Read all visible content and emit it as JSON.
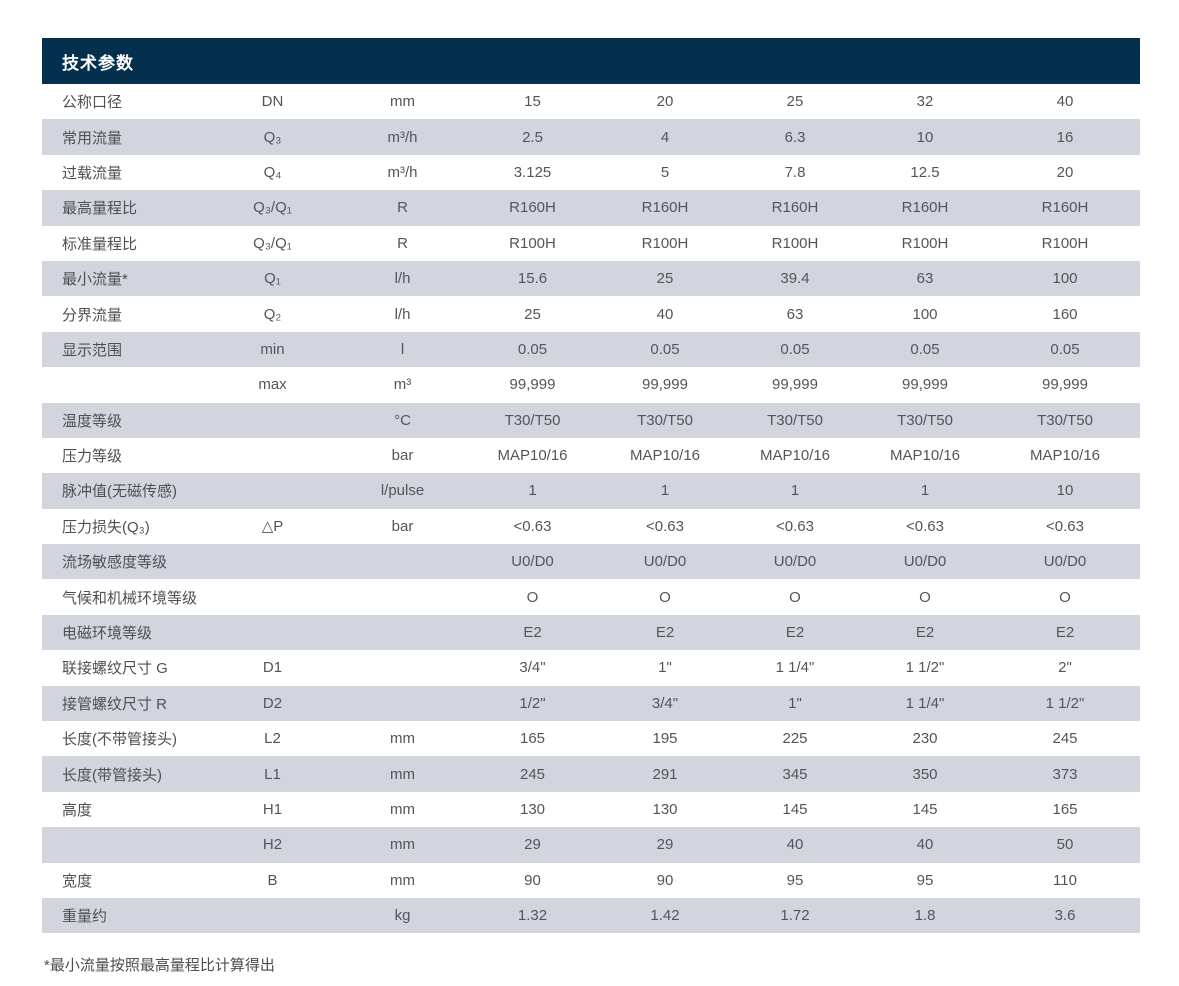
{
  "header": {
    "title": "技术参数"
  },
  "footnote": "*最小流量按照最高量程比计算得出",
  "colors": {
    "header_bg": "#04304d",
    "header_text": "#ffffff",
    "row_alt_bg": "#d3d5de",
    "row_bg": "#ffffff",
    "body_text": "#53555b"
  },
  "table": {
    "column_roles": [
      "label",
      "symbol",
      "unit",
      "DN15",
      "DN20",
      "DN25",
      "DN32",
      "DN40"
    ],
    "rows": [
      {
        "label": "公称口径",
        "symbol": "DN",
        "unit": "mm",
        "values": [
          "15",
          "20",
          "25",
          "32",
          "40"
        ]
      },
      {
        "label": "常用流量",
        "symbol": "Q₃",
        "unit": "m³/h",
        "values": [
          "2.5",
          "4",
          "6.3",
          "10",
          "16"
        ]
      },
      {
        "label": "过载流量",
        "symbol": "Q₄",
        "unit": "m³/h",
        "values": [
          "3.125",
          "5",
          "7.8",
          "12.5",
          "20"
        ]
      },
      {
        "label": "最高量程比",
        "symbol": "Q₃/Q₁",
        "unit": "R",
        "values": [
          "R160H",
          "R160H",
          "R160H",
          "R160H",
          "R160H"
        ]
      },
      {
        "label": "标准量程比",
        "symbol": "Q₃/Q₁",
        "unit": "R",
        "values": [
          "R100H",
          "R100H",
          "R100H",
          "R100H",
          "R100H"
        ]
      },
      {
        "label": "最小流量*",
        "symbol": "Q₁",
        "unit": "l/h",
        "values": [
          "15.6",
          "25",
          "39.4",
          "63",
          "100"
        ]
      },
      {
        "label": "分界流量",
        "symbol": "Q₂",
        "unit": "l/h",
        "values": [
          "25",
          "40",
          "63",
          "100",
          "160"
        ]
      },
      {
        "label": "显示范围",
        "symbol": "min",
        "unit": "l",
        "values": [
          "0.05",
          "0.05",
          "0.05",
          "0.05",
          "0.05"
        ]
      },
      {
        "label": "",
        "symbol": "max",
        "unit": "m³",
        "values": [
          "99,999",
          "99,999",
          "99,999",
          "99,999",
          "99,999"
        ]
      },
      {
        "label": "温度等级",
        "symbol": "",
        "unit": "°C",
        "values": [
          "T30/T50",
          "T30/T50",
          "T30/T50",
          "T30/T50",
          "T30/T50"
        ]
      },
      {
        "label": "压力等级",
        "symbol": "",
        "unit": "bar",
        "values": [
          "MAP10/16",
          "MAP10/16",
          "MAP10/16",
          "MAP10/16",
          "MAP10/16"
        ]
      },
      {
        "label": "脉冲值(无磁传感)",
        "symbol": "",
        "unit": "l/pulse",
        "values": [
          "1",
          "1",
          "1",
          "1",
          "10"
        ]
      },
      {
        "label": "压力损失(Q₃)",
        "symbol": "△P",
        "unit": "bar",
        "values": [
          "<0.63",
          "<0.63",
          "<0.63",
          "<0.63",
          "<0.63"
        ]
      },
      {
        "label": "流场敏感度等级",
        "symbol": "",
        "unit": "",
        "values": [
          "U0/D0",
          "U0/D0",
          "U0/D0",
          "U0/D0",
          "U0/D0"
        ]
      },
      {
        "label": "气候和机械环境等级",
        "symbol": "",
        "unit": "",
        "values": [
          "O",
          "O",
          "O",
          "O",
          "O"
        ]
      },
      {
        "label": "电磁环境等级",
        "symbol": "",
        "unit": "",
        "values": [
          "E2",
          "E2",
          "E2",
          "E2",
          "E2"
        ]
      },
      {
        "label": "联接螺纹尺寸 G",
        "symbol": "D1",
        "unit": "",
        "values": [
          "3/4\"",
          "1\"",
          "1 1/4\"",
          "1 1/2\"",
          "2\""
        ]
      },
      {
        "label": "接管螺纹尺寸 R",
        "symbol": "D2",
        "unit": "",
        "values": [
          "1/2\"",
          "3/4\"",
          "1\"",
          "1 1/4\"",
          "1 1/2\""
        ]
      },
      {
        "label": "长度(不带管接头)",
        "symbol": "L2",
        "unit": "mm",
        "values": [
          "165",
          "195",
          "225",
          "230",
          "245"
        ]
      },
      {
        "label": "长度(带管接头)",
        "symbol": "L1",
        "unit": "mm",
        "values": [
          "245",
          "291",
          "345",
          "350",
          "373"
        ]
      },
      {
        "label": "高度",
        "symbol": "H1",
        "unit": "mm",
        "values": [
          "130",
          "130",
          "145",
          "145",
          "165"
        ]
      },
      {
        "label": "",
        "symbol": "H2",
        "unit": "mm",
        "values": [
          "29",
          "29",
          "40",
          "40",
          "50"
        ]
      },
      {
        "label": "宽度",
        "symbol": "B",
        "unit": "mm",
        "values": [
          "90",
          "90",
          "95",
          "95",
          "110"
        ]
      },
      {
        "label": "重量约",
        "symbol": "",
        "unit": "kg",
        "values": [
          "1.32",
          "1.42",
          "1.72",
          "1.8",
          "3.6"
        ]
      }
    ]
  }
}
